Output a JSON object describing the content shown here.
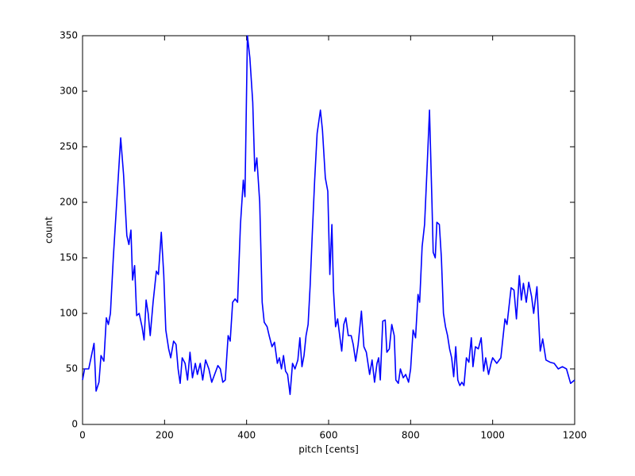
{
  "chart_data": {
    "type": "line",
    "x_label": "pitch [cents]",
    "y_label": "count",
    "x": [
      0,
      5,
      15,
      28,
      33,
      40,
      45,
      52,
      58,
      63,
      68,
      75,
      85,
      93,
      100,
      108,
      113,
      118,
      122,
      127,
      132,
      138,
      145,
      150,
      155,
      160,
      165,
      172,
      180,
      185,
      192,
      198,
      203,
      210,
      215,
      222,
      228,
      233,
      238,
      243,
      250,
      256,
      262,
      268,
      275,
      280,
      287,
      293,
      300,
      308,
      315,
      322,
      330,
      336,
      342,
      348,
      355,
      360,
      366,
      372,
      378,
      385,
      392,
      396,
      402,
      408,
      415,
      420,
      425,
      432,
      438,
      443,
      450,
      455,
      462,
      468,
      475,
      480,
      485,
      490,
      495,
      500,
      506,
      512,
      518,
      525,
      530,
      535,
      540,
      545,
      550,
      555,
      560,
      566,
      572,
      580,
      585,
      592,
      598,
      603,
      608,
      612,
      617,
      622,
      627,
      632,
      637,
      642,
      648,
      655,
      660,
      666,
      672,
      680,
      686,
      692,
      700,
      706,
      712,
      718,
      722,
      726,
      732,
      738,
      742,
      748,
      754,
      760,
      764,
      770,
      775,
      782,
      788,
      795,
      800,
      806,
      812,
      818,
      822,
      828,
      834,
      840,
      846,
      852,
      855,
      860,
      864,
      870,
      875,
      880,
      885,
      890,
      895,
      900,
      905,
      910,
      915,
      920,
      925,
      930,
      936,
      942,
      948,
      952,
      958,
      965,
      972,
      978,
      983,
      990,
      996,
      1000,
      1010,
      1020,
      1030,
      1035,
      1045,
      1052,
      1058,
      1065,
      1070,
      1075,
      1082,
      1088,
      1095,
      1100,
      1108,
      1116,
      1122,
      1130,
      1140,
      1150,
      1160,
      1170,
      1180,
      1190,
      1200
    ],
    "series": [
      {
        "color": "#0000ff",
        "values": [
          40,
          50,
          50,
          73,
          30,
          38,
          62,
          57,
          96,
          90,
          100,
          150,
          210,
          258,
          225,
          170,
          162,
          175,
          130,
          143,
          98,
          100,
          88,
          76,
          112,
          100,
          80,
          110,
          138,
          135,
          173,
          135,
          85,
          68,
          60,
          75,
          72,
          50,
          37,
          60,
          55,
          40,
          65,
          42,
          55,
          45,
          55,
          40,
          58,
          50,
          38,
          45,
          53,
          50,
          38,
          40,
          80,
          75,
          110,
          113,
          110,
          180,
          220,
          205,
          350,
          330,
          290,
          228,
          240,
          200,
          110,
          92,
          88,
          80,
          70,
          74,
          55,
          60,
          50,
          62,
          48,
          45,
          27,
          55,
          50,
          58,
          78,
          52,
          62,
          80,
          90,
          125,
          170,
          220,
          262,
          283,
          265,
          222,
          210,
          135,
          180,
          120,
          88,
          95,
          80,
          66,
          90,
          96,
          80,
          80,
          72,
          57,
          72,
          102,
          70,
          65,
          45,
          58,
          38,
          55,
          60,
          40,
          93,
          94,
          65,
          68,
          90,
          80,
          40,
          37,
          50,
          42,
          45,
          38,
          50,
          85,
          78,
          117,
          110,
          160,
          180,
          230,
          283,
          200,
          155,
          150,
          182,
          180,
          150,
          100,
          88,
          80,
          68,
          60,
          43,
          70,
          40,
          35,
          38,
          35,
          60,
          56,
          78,
          52,
          70,
          68,
          78,
          48,
          60,
          45,
          55,
          60,
          55,
          60,
          95,
          90,
          123,
          121,
          95,
          134,
          112,
          127,
          110,
          128,
          115,
          100,
          124,
          66,
          77,
          58,
          56,
          55,
          50,
          52,
          50,
          37,
          40
        ]
      }
    ],
    "xlim": [
      0,
      1200
    ],
    "ylim": [
      0,
      350
    ],
    "xticks": [
      0,
      200,
      400,
      600,
      800,
      1000,
      1200
    ],
    "yticks": [
      0,
      50,
      100,
      150,
      200,
      250,
      300,
      350
    ]
  }
}
